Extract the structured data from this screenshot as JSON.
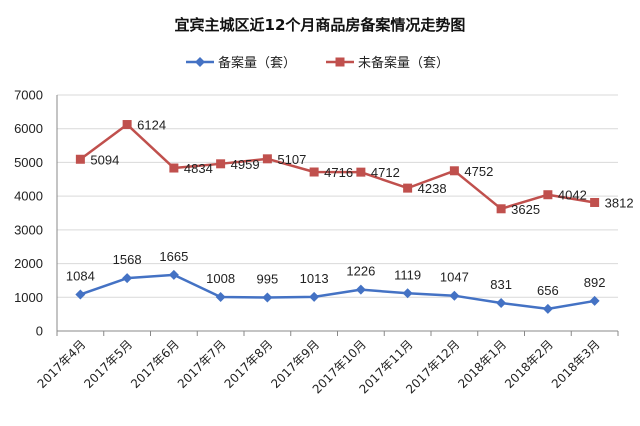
{
  "chart_data": {
    "type": "line",
    "title": "宜宾主城区近12个月商品房备案情况走势图",
    "categories": [
      "2017年4月",
      "2017年5月",
      "2017年6月",
      "2017年7月",
      "2017年8月",
      "2017年9月",
      "2017年10月",
      "2017年11月",
      "2017年12月",
      "2018年1月",
      "2018年2月",
      "2018年3月"
    ],
    "series": [
      {
        "name": "备案量（套）",
        "color": "#4472c4",
        "marker": "diamond",
        "values": [
          1084,
          1568,
          1665,
          1008,
          995,
          1013,
          1226,
          1119,
          1047,
          831,
          656,
          892
        ]
      },
      {
        "name": "未备案量（套）",
        "color": "#c0504d",
        "marker": "square",
        "values": [
          5094,
          6124,
          4834,
          4959,
          5107,
          4716,
          4712,
          4238,
          4752,
          3625,
          4042,
          3812
        ]
      }
    ],
    "ylim": [
      0,
      7000
    ],
    "yticks": [
      0,
      1000,
      2000,
      3000,
      4000,
      5000,
      6000,
      7000
    ],
    "grid": true,
    "legend": "top-center"
  }
}
